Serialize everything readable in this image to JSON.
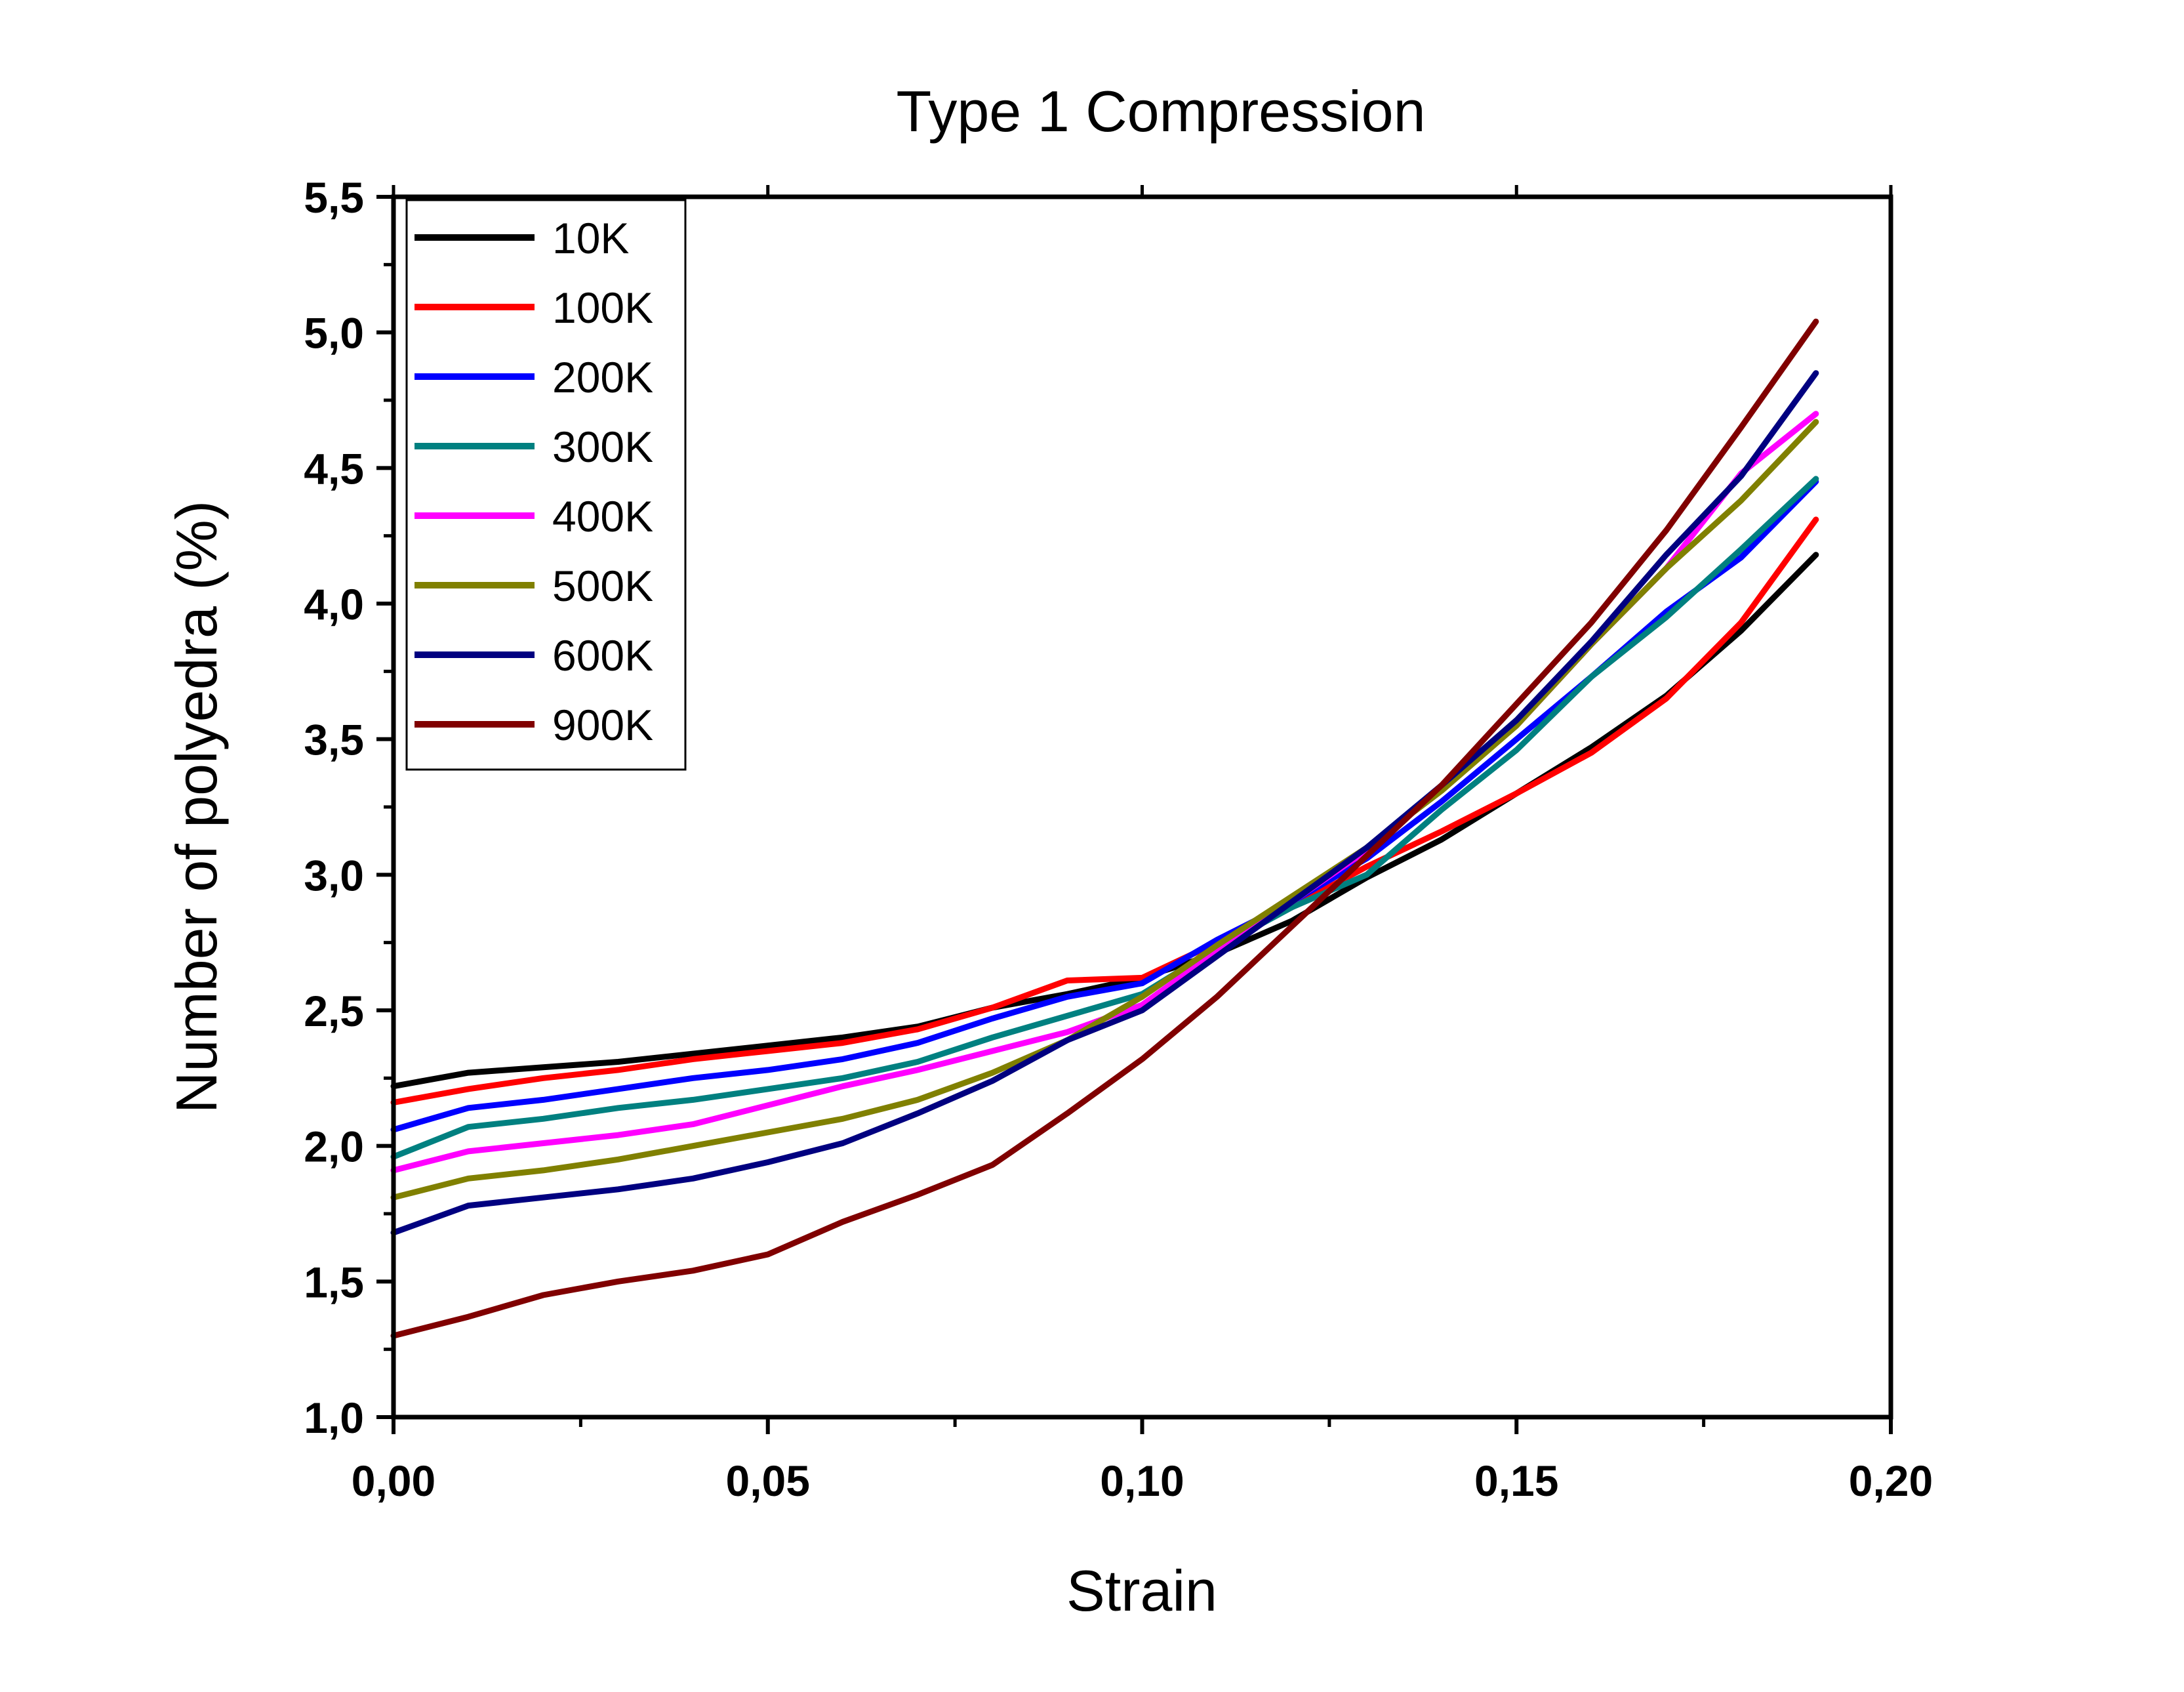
{
  "chart_data": {
    "type": "line",
    "title": "Type 1 Compression",
    "xlabel": "Strain",
    "ylabel": "Number of polyedra (%)",
    "xlim": [
      0.0,
      0.2
    ],
    "ylim": [
      1.0,
      5.5
    ],
    "x_ticks": [
      0.0,
      0.05,
      0.1,
      0.15,
      0.2
    ],
    "x_tick_labels": [
      "0,00",
      "0,05",
      "0,10",
      "0,15",
      "0,20"
    ],
    "y_ticks": [
      1.0,
      1.5,
      2.0,
      2.5,
      3.0,
      3.5,
      4.0,
      4.5,
      5.0,
      5.5
    ],
    "y_tick_labels": [
      "1,0",
      "1,5",
      "2,0",
      "2,5",
      "3,0",
      "3,5",
      "4,0",
      "4,5",
      "5,0",
      "5,5"
    ],
    "grid": false,
    "legend_position": "top-left",
    "x": [
      0.0,
      0.01,
      0.02,
      0.03,
      0.04,
      0.05,
      0.06,
      0.07,
      0.08,
      0.09,
      0.1,
      0.11,
      0.12,
      0.13,
      0.14,
      0.15,
      0.16,
      0.17,
      0.18,
      0.19
    ],
    "series": [
      {
        "name": "10K",
        "color": "#000000",
        "values": [
          2.22,
          2.27,
          2.29,
          2.31,
          2.34,
          2.37,
          2.4,
          2.44,
          2.51,
          2.56,
          2.62,
          2.71,
          2.83,
          2.99,
          3.13,
          3.3,
          3.47,
          3.66,
          3.9,
          4.18
        ]
      },
      {
        "name": "100K",
        "color": "#ff0000",
        "values": [
          2.16,
          2.21,
          2.25,
          2.28,
          2.32,
          2.35,
          2.38,
          2.43,
          2.51,
          2.61,
          2.62,
          2.75,
          2.88,
          3.03,
          3.16,
          3.3,
          3.45,
          3.65,
          3.93,
          4.31
        ]
      },
      {
        "name": "200K",
        "color": "#0000ff",
        "values": [
          2.06,
          2.14,
          2.17,
          2.21,
          2.25,
          2.28,
          2.32,
          2.38,
          2.47,
          2.55,
          2.6,
          2.76,
          2.9,
          3.06,
          3.27,
          3.5,
          3.73,
          3.97,
          4.17,
          4.45
        ]
      },
      {
        "name": "300K",
        "color": "#008080",
        "values": [
          1.96,
          2.07,
          2.1,
          2.14,
          2.17,
          2.21,
          2.25,
          2.31,
          2.4,
          2.48,
          2.56,
          2.73,
          2.88,
          3.0,
          3.24,
          3.46,
          3.73,
          3.95,
          4.2,
          4.46
        ]
      },
      {
        "name": "400K",
        "color": "#ff00ff",
        "values": [
          1.91,
          1.98,
          2.01,
          2.04,
          2.08,
          2.15,
          2.22,
          2.28,
          2.35,
          2.42,
          2.52,
          2.72,
          2.9,
          3.09,
          3.32,
          3.55,
          3.85,
          4.13,
          4.48,
          4.7
        ]
      },
      {
        "name": "500K",
        "color": "#808000",
        "values": [
          1.81,
          1.88,
          1.91,
          1.95,
          2.0,
          2.05,
          2.1,
          2.17,
          2.27,
          2.39,
          2.55,
          2.74,
          2.92,
          3.1,
          3.31,
          3.55,
          3.85,
          4.13,
          4.38,
          4.67
        ]
      },
      {
        "name": "600K",
        "color": "#000080",
        "values": [
          1.68,
          1.78,
          1.81,
          1.84,
          1.88,
          1.94,
          2.01,
          2.12,
          2.24,
          2.39,
          2.5,
          2.7,
          2.9,
          3.1,
          3.33,
          3.57,
          3.86,
          4.18,
          4.47,
          4.85
        ]
      },
      {
        "name": "900K",
        "color": "#800000",
        "values": [
          1.3,
          1.37,
          1.45,
          1.5,
          1.54,
          1.6,
          1.72,
          1.82,
          1.93,
          2.12,
          2.32,
          2.55,
          2.81,
          3.07,
          3.33,
          3.63,
          3.93,
          4.27,
          4.65,
          5.04
        ]
      }
    ]
  }
}
